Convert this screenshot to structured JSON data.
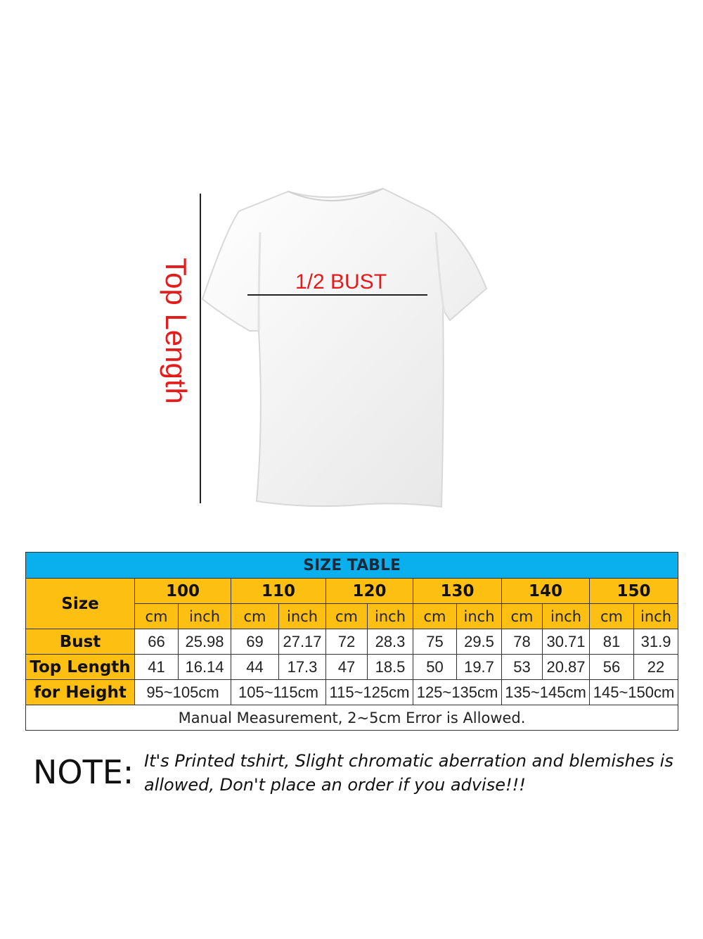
{
  "diagram": {
    "top_length_label": "Top Length",
    "bust_label": "1/2 BUST",
    "label_color": "#e31b1b"
  },
  "size_table": {
    "title": "SIZE TABLE",
    "header_label": "Size",
    "sizes": [
      "100",
      "110",
      "120",
      "130",
      "140",
      "150"
    ],
    "units": [
      "cm",
      "inch"
    ],
    "rows": [
      {
        "label": "Bust",
        "values": [
          "66",
          "25.98",
          "69",
          "27.17",
          "72",
          "28.3",
          "75",
          "29.5",
          "78",
          "30.71",
          "81",
          "31.9"
        ]
      },
      {
        "label": "Top Length",
        "values": [
          "41",
          "16.14",
          "44",
          "17.3",
          "47",
          "18.5",
          "50",
          "19.7",
          "53",
          "20.87",
          "56",
          "22"
        ]
      }
    ],
    "height_row": {
      "label": "for Height",
      "values": [
        "95~105cm",
        "105~115cm",
        "115~125cm",
        "125~135cm",
        "135~145cm",
        "145~150cm"
      ]
    },
    "footer": "Manual Measurement, 2~5cm Error is Allowed.",
    "colors": {
      "title_bg": "#0ab0ee",
      "header_bg": "#fdc012"
    }
  },
  "note": {
    "label": "NOTE:",
    "text": "It's Printed tshirt, Slight chromatic aberration and blemishes is allowed, Don't place an order if you advise!!!"
  }
}
